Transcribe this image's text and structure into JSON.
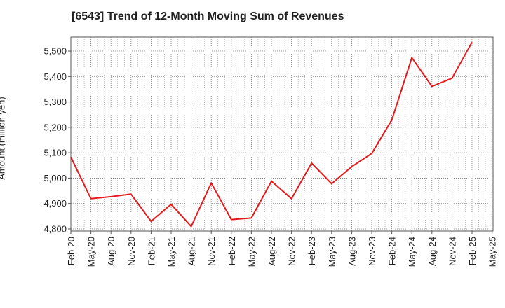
{
  "chart_data": {
    "type": "line",
    "title": "[6543]  Trend of 12-Month Moving Sum of Revenues",
    "xlabel": "",
    "ylabel": "Amount (million yen)",
    "ylim": [
      4800,
      5550
    ],
    "yticks": [
      4800,
      4900,
      5000,
      5100,
      5200,
      5300,
      5400,
      5500
    ],
    "ytick_labels": [
      "4,800",
      "4,900",
      "5,000",
      "5,100",
      "5,200",
      "5,300",
      "5,400",
      "5,500"
    ],
    "xtick_labels": [
      "Feb-20",
      "May-20",
      "Aug-20",
      "Nov-20",
      "Feb-21",
      "May-21",
      "Aug-21",
      "Nov-21",
      "Feb-22",
      "May-22",
      "Aug-22",
      "Nov-22",
      "Feb-23",
      "May-23",
      "Aug-23",
      "Nov-23",
      "Feb-24",
      "May-24",
      "Aug-24",
      "Nov-24",
      "Feb-25",
      "May-25"
    ],
    "grid": true,
    "series": [
      {
        "color": "#e31a1c",
        "x": [
          "Feb-20",
          "May-20",
          "Aug-20",
          "Nov-20",
          "Feb-21",
          "May-21",
          "Aug-21",
          "Nov-21",
          "Feb-22",
          "May-22",
          "Aug-22",
          "Nov-22",
          "Feb-23",
          "May-23",
          "Aug-23",
          "Nov-23",
          "Feb-24",
          "May-24",
          "Aug-24",
          "Nov-24",
          "Feb-25"
        ],
        "values": [
          5083,
          4919,
          4927,
          4937,
          4830,
          4897,
          4810,
          4981,
          4837,
          4843,
          4988,
          4919,
          5059,
          4978,
          5045,
          5097,
          5229,
          5474,
          5361,
          5393,
          5535
        ]
      }
    ]
  }
}
